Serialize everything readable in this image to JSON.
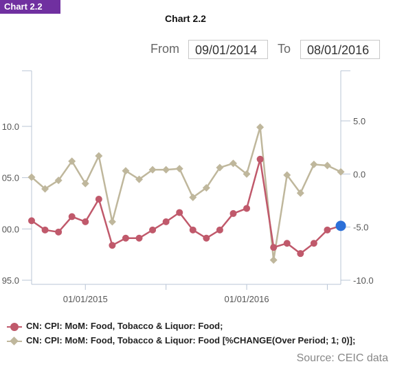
{
  "badge": "Chart 2.2",
  "title": "Chart 2.2",
  "range": {
    "from_label": "From",
    "from_value": "09/01/2014",
    "to_label": "To",
    "to_value": "08/01/2016"
  },
  "source": "Source: CEIC data",
  "colors": {
    "series1": "#c0596b",
    "series2": "#bfb79c",
    "highlight": "#2b6fd8",
    "axis": "#b8c4d6"
  },
  "chart_data": {
    "type": "line",
    "x": [
      "09/01/2014",
      "10/01/2014",
      "11/01/2014",
      "12/01/2014",
      "01/01/2015",
      "02/01/2015",
      "03/01/2015",
      "04/01/2015",
      "05/01/2015",
      "06/01/2015",
      "07/01/2015",
      "08/01/2015",
      "09/01/2015",
      "10/01/2015",
      "11/01/2015",
      "12/01/2015",
      "01/01/2016",
      "02/01/2016",
      "03/01/2016",
      "04/01/2016",
      "05/01/2016",
      "06/01/2016",
      "07/01/2016",
      "08/01/2016"
    ],
    "x_tick_labels": [
      "01/01/2015",
      "01/01/2016"
    ],
    "left_axis": {
      "ticks": [
        "95.0",
        "00.0",
        "05.0",
        "10.0"
      ],
      "ylim": [
        95.0,
        114.5
      ]
    },
    "right_axis": {
      "ticks": [
        "-10.0",
        "-5.0",
        "0.0",
        "5.0"
      ],
      "ylim": [
        -10.0,
        10.0
      ]
    },
    "series": [
      {
        "name": "CN: CPI: MoM: Food, Tobacco & Liquor: Food;",
        "axis": "left",
        "values": [
          100.8,
          99.9,
          99.7,
          101.2,
          100.7,
          102.9,
          98.4,
          99.1,
          99.1,
          99.9,
          100.7,
          101.6,
          99.9,
          99.1,
          99.9,
          101.5,
          102.0,
          106.8,
          98.2,
          98.6,
          97.6,
          98.6,
          99.9,
          100.3
        ]
      },
      {
        "name": "CN: CPI: MoM: Food, Tobacco & Liquor: Food [%CHANGE(Over Period; 1; 0)];",
        "axis": "right",
        "values": [
          -0.3,
          -1.4,
          -0.6,
          1.2,
          -0.9,
          1.7,
          -4.5,
          0.3,
          -0.5,
          0.4,
          0.4,
          0.5,
          -2.2,
          -1.3,
          0.6,
          1.0,
          0.0,
          4.4,
          -8.1,
          -0.1,
          -1.8,
          0.9,
          0.8,
          0.2
        ]
      }
    ]
  }
}
